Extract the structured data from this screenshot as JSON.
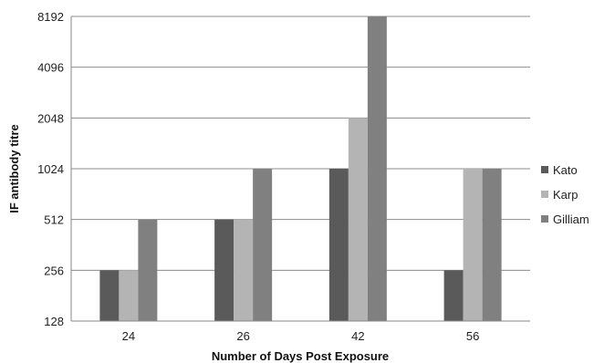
{
  "chart_data": {
    "type": "bar",
    "title": "",
    "xlabel": "Number of Days Post Exposure",
    "ylabel": "IF antibody titre",
    "categories": [
      "24",
      "26",
      "42",
      "56"
    ],
    "series": [
      {
        "name": "Kato",
        "color": "#5a5a5a",
        "values": [
          256,
          512,
          1024,
          256
        ]
      },
      {
        "name": "Karp",
        "color": "#b4b4b4",
        "values": [
          256,
          512,
          2048,
          1024
        ]
      },
      {
        "name": "Gilliam",
        "color": "#808080",
        "values": [
          512,
          1024,
          8192,
          1024
        ]
      }
    ],
    "yscale": "log2",
    "yticks": [
      "128",
      "256",
      "512",
      "1024",
      "2048",
      "4096",
      "8192"
    ],
    "ylim": [
      128,
      8192
    ],
    "grid": true,
    "legend": "right"
  }
}
